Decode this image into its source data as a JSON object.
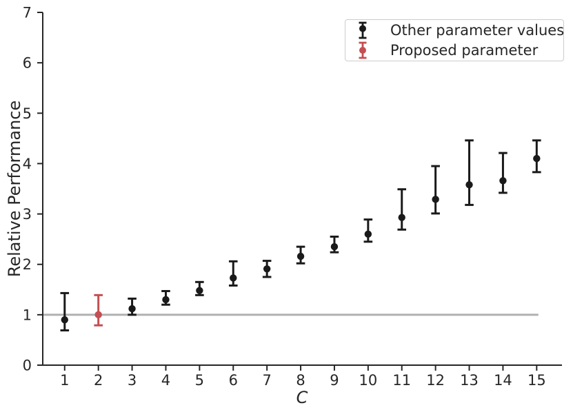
{
  "figure": {
    "background": "#ffffff",
    "axis_color": "#262626",
    "text_color": "#262626",
    "legend_border_color": "#cccccc"
  },
  "chart_data": {
    "type": "scatter",
    "subtype": "errorbar",
    "title": "",
    "xlabel": "C",
    "ylabel": "Relative Performance",
    "xlim": [
      0.35,
      15.75
    ],
    "ylim": [
      0,
      7
    ],
    "x_ticks": [
      1,
      2,
      3,
      4,
      5,
      6,
      7,
      8,
      9,
      10,
      11,
      12,
      13,
      14,
      15
    ],
    "y_ticks": [
      0,
      1,
      2,
      3,
      4,
      5,
      6,
      7
    ],
    "grid": false,
    "legend_position": "upper right",
    "reference_line": {
      "y": 1.0,
      "color": "#b0b0b0",
      "x_start": 0.35,
      "x_end": 15.05
    },
    "series": [
      {
        "name": "Other parameter values",
        "color": "#1a1a1a",
        "points": [
          {
            "x": 1,
            "y": 0.9,
            "lo": 0.69,
            "hi": 1.43
          },
          {
            "x": 3,
            "y": 1.12,
            "lo": 1.0,
            "hi": 1.32
          },
          {
            "x": 4,
            "y": 1.3,
            "lo": 1.2,
            "hi": 1.47
          },
          {
            "x": 5,
            "y": 1.48,
            "lo": 1.39,
            "hi": 1.65
          },
          {
            "x": 6,
            "y": 1.73,
            "lo": 1.58,
            "hi": 2.06
          },
          {
            "x": 7,
            "y": 1.91,
            "lo": 1.75,
            "hi": 2.07
          },
          {
            "x": 8,
            "y": 2.16,
            "lo": 2.02,
            "hi": 2.35
          },
          {
            "x": 9,
            "y": 2.35,
            "lo": 2.24,
            "hi": 2.55
          },
          {
            "x": 10,
            "y": 2.6,
            "lo": 2.45,
            "hi": 2.89
          },
          {
            "x": 11,
            "y": 2.93,
            "lo": 2.69,
            "hi": 3.49
          },
          {
            "x": 12,
            "y": 3.29,
            "lo": 3.01,
            "hi": 3.95
          },
          {
            "x": 13,
            "y": 3.58,
            "lo": 3.18,
            "hi": 4.46
          },
          {
            "x": 14,
            "y": 3.66,
            "lo": 3.42,
            "hi": 4.21
          },
          {
            "x": 15,
            "y": 4.1,
            "lo": 3.83,
            "hi": 4.46
          }
        ]
      },
      {
        "name": "Proposed parameter",
        "color": "#c44e52",
        "points": [
          {
            "x": 2,
            "y": 1.0,
            "lo": 0.79,
            "hi": 1.39
          }
        ]
      }
    ]
  }
}
